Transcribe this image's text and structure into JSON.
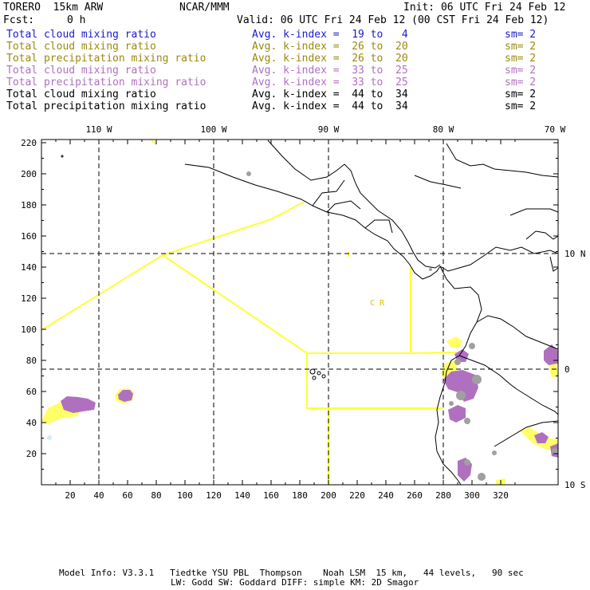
{
  "header": {
    "model": "TORERO  15km ARW",
    "org": "NCAR/MMM",
    "init": "Init: 06 UTC Fri 24 Feb 12",
    "fcst_label": "Fcst:",
    "fcst_value": "0 h",
    "valid": "Valid: 06 UTC Fri 24 Feb 12 (00 CST Fri 24 Feb 12)"
  },
  "legend_rows": [
    {
      "name": "Total cloud mixing ratio",
      "range": "Avg. k-index =  19 to   4",
      "sm": "sm= 2",
      "color": "#1a1ad0"
    },
    {
      "name": "Total cloud mixing ratio",
      "range": "Avg. k-index =  26 to  20",
      "sm": "sm= 2",
      "color": "#9a8a10"
    },
    {
      "name": "Total precipitation mixing ratio",
      "range": "Avg. k-index =  26 to  20",
      "sm": "sm= 2",
      "color": "#9a8a10"
    },
    {
      "name": "Total cloud mixing ratio",
      "range": "Avg. k-index =  33 to  25",
      "sm": "sm= 2",
      "color": "#b070c0"
    },
    {
      "name": "Total precipitation mixing ratio",
      "range": "Avg. k-index =  33 to  25",
      "sm": "sm= 2",
      "color": "#b070c0"
    },
    {
      "name": "Total cloud mixing ratio",
      "range": "Avg. k-index =  44 to  34",
      "sm": "sm= 2",
      "color": "#000000"
    },
    {
      "name": "Total precipitation mixing ratio",
      "range": "Avg. k-index =  44 to  34",
      "sm": "sm= 2",
      "color": "#000000"
    }
  ],
  "map": {
    "top_lon_labels": [
      "110 W",
      "100 W",
      "90 W",
      "80 W",
      "70 W"
    ],
    "right_lat_labels": [
      "10 N",
      "0",
      "10 S"
    ],
    "x_ticks": [
      "20",
      "40",
      "60",
      "80",
      "100",
      "120",
      "140",
      "160",
      "180",
      "200",
      "220",
      "240",
      "260",
      "280",
      "300",
      "320"
    ],
    "y_ticks": [
      "20",
      "40",
      "60",
      "80",
      "100",
      "120",
      "140",
      "160",
      "180",
      "200",
      "220"
    ],
    "region_label": "C  R",
    "colors": {
      "coast": "#000000",
      "boundary": "#ffff33",
      "grid": "#000000",
      "cloud_yellow": "#ffff66",
      "precip_purple": "#b070c0",
      "gray": "#a0a0a0"
    }
  },
  "footer": {
    "line1": "Model Info: V3.3.1   Tiedtke YSU PBL  Thompson    Noah LSM  15 km,   44 levels,   90 sec",
    "line2": "LW: Godd SW: Goddard DIFF: simple KM: 2D Smagor"
  }
}
